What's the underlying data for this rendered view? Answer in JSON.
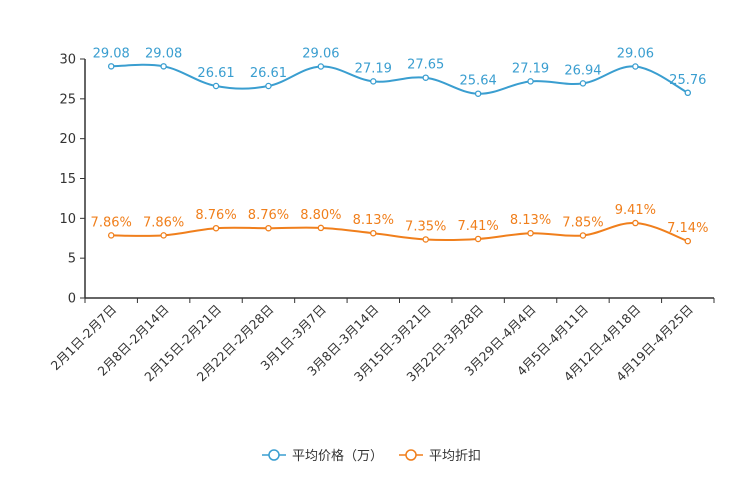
{
  "chart_data": {
    "type": "line",
    "title": "",
    "xlabel": "",
    "ylabel": "",
    "ylim": [
      0,
      30
    ],
    "yticks": [
      0,
      5,
      10,
      15,
      20,
      25,
      30
    ],
    "grid": false,
    "legend_position": "bottom-center",
    "categories": [
      "2月1日-2月7日",
      "2月8日-2月14日",
      "2月15日-2月21日",
      "2月22日-2月28日",
      "3月1日-3月7日",
      "3月8日-3月14日",
      "3月15日-3月21日",
      "3月22日-3月28日",
      "3月29日-4月4日",
      "4月5日-4月11日",
      "4月12日-4月18日",
      "4月19日-4月25日"
    ],
    "series": [
      {
        "name": "平均价格（万）",
        "color": "#3a9ed0",
        "values": [
          29.08,
          29.08,
          26.61,
          26.61,
          29.06,
          27.19,
          27.65,
          25.64,
          27.19,
          26.94,
          29.06,
          25.76
        ],
        "labels": [
          "29.08",
          "29.08",
          "26.61",
          "26.61",
          "29.06",
          "27.19",
          "27.65",
          "25.64",
          "27.19",
          "26.94",
          "29.06",
          "25.76"
        ]
      },
      {
        "name": "平均折扣",
        "color": "#f07f1c",
        "values": [
          7.86,
          7.86,
          8.76,
          8.76,
          8.8,
          8.13,
          7.35,
          7.41,
          8.13,
          7.85,
          9.41,
          7.14
        ],
        "labels": [
          "7.86%",
          "7.86%",
          "8.76%",
          "8.76%",
          "8.80%",
          "8.13%",
          "7.35%",
          "7.41%",
          "8.13%",
          "7.85%",
          "9.41%",
          "7.14%"
        ]
      }
    ]
  }
}
